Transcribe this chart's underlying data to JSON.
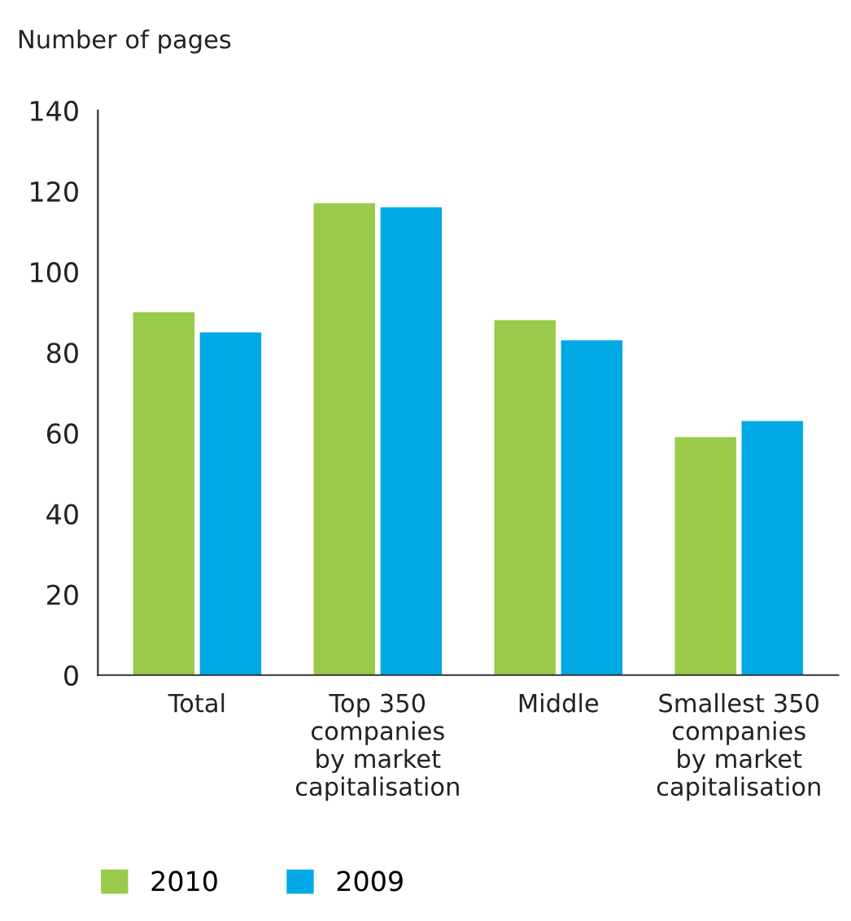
{
  "chart_data": {
    "type": "bar",
    "ylabel": "Number of pages",
    "categories": [
      "Total",
      "Top 350\ncompanies\nby market\ncapitalisation",
      "Middle",
      "Smallest 350\ncompanies\nby market\ncapitalisation"
    ],
    "series": [
      {
        "name": "2010",
        "color": "#99ca49",
        "values": [
          90,
          117,
          88,
          59
        ]
      },
      {
        "name": "2009",
        "color": "#00a9e6",
        "values": [
          85,
          116,
          83,
          63
        ]
      }
    ],
    "ylim": [
      0,
      140
    ],
    "yticks": [
      0,
      20,
      40,
      60,
      80,
      100,
      120,
      140
    ],
    "grid": false,
    "legend": "bottom left"
  }
}
